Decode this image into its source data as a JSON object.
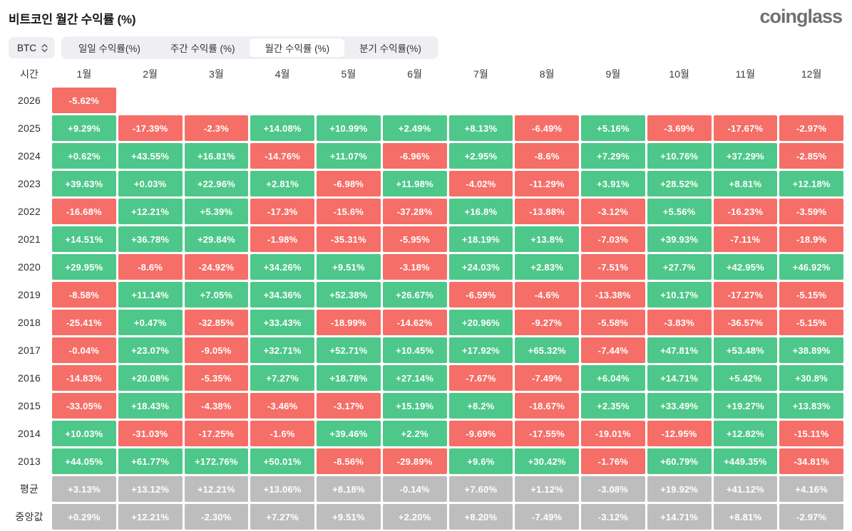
{
  "header": {
    "title": "비트코인 월간 수익률 (%)",
    "logo": "coinglass"
  },
  "controls": {
    "symbol_select": {
      "value": "BTC"
    },
    "tabs": [
      {
        "label": "일일 수익률(%)",
        "active": false
      },
      {
        "label": "주간 수익률 (%)",
        "active": false
      },
      {
        "label": "월간 수익률 (%)",
        "active": true
      },
      {
        "label": "분기 수익률(%)",
        "active": false
      }
    ]
  },
  "table": {
    "time_header": "시간",
    "months": [
      "1월",
      "2월",
      "3월",
      "4월",
      "5월",
      "6월",
      "7월",
      "8월",
      "9월",
      "10월",
      "11월",
      "12월"
    ],
    "rows": [
      {
        "label": "2026",
        "type": "year",
        "cells": [
          "-5.62%",
          "",
          "",
          "",
          "",
          "",
          "",
          "",
          "",
          "",
          "",
          ""
        ]
      },
      {
        "label": "2025",
        "type": "year",
        "cells": [
          "+9.29%",
          "-17.39%",
          "-2.3%",
          "+14.08%",
          "+10.99%",
          "+2.49%",
          "+8.13%",
          "-6.49%",
          "+5.16%",
          "-3.69%",
          "-17.67%",
          "-2.97%"
        ]
      },
      {
        "label": "2024",
        "type": "year",
        "cells": [
          "+0.62%",
          "+43.55%",
          "+16.81%",
          "-14.76%",
          "+11.07%",
          "-6.96%",
          "+2.95%",
          "-8.6%",
          "+7.29%",
          "+10.76%",
          "+37.29%",
          "-2.85%"
        ]
      },
      {
        "label": "2023",
        "type": "year",
        "cells": [
          "+39.63%",
          "+0.03%",
          "+22.96%",
          "+2.81%",
          "-6.98%",
          "+11.98%",
          "-4.02%",
          "-11.29%",
          "+3.91%",
          "+28.52%",
          "+8.81%",
          "+12.18%"
        ]
      },
      {
        "label": "2022",
        "type": "year",
        "cells": [
          "-16.68%",
          "+12.21%",
          "+5.39%",
          "-17.3%",
          "-15.6%",
          "-37.28%",
          "+16.8%",
          "-13.88%",
          "-3.12%",
          "+5.56%",
          "-16.23%",
          "-3.59%"
        ]
      },
      {
        "label": "2021",
        "type": "year",
        "cells": [
          "+14.51%",
          "+36.78%",
          "+29.84%",
          "-1.98%",
          "-35.31%",
          "-5.95%",
          "+18.19%",
          "+13.8%",
          "-7.03%",
          "+39.93%",
          "-7.11%",
          "-18.9%"
        ]
      },
      {
        "label": "2020",
        "type": "year",
        "cells": [
          "+29.95%",
          "-8.6%",
          "-24.92%",
          "+34.26%",
          "+9.51%",
          "-3.18%",
          "+24.03%",
          "+2.83%",
          "-7.51%",
          "+27.7%",
          "+42.95%",
          "+46.92%"
        ]
      },
      {
        "label": "2019",
        "type": "year",
        "cells": [
          "-8.58%",
          "+11.14%",
          "+7.05%",
          "+34.36%",
          "+52.38%",
          "+26.67%",
          "-6.59%",
          "-4.6%",
          "-13.38%",
          "+10.17%",
          "-17.27%",
          "-5.15%"
        ]
      },
      {
        "label": "2018",
        "type": "year",
        "cells": [
          "-25.41%",
          "+0.47%",
          "-32.85%",
          "+33.43%",
          "-18.99%",
          "-14.62%",
          "+20.96%",
          "-9.27%",
          "-5.58%",
          "-3.83%",
          "-36.57%",
          "-5.15%"
        ]
      },
      {
        "label": "2017",
        "type": "year",
        "cells": [
          "-0.04%",
          "+23.07%",
          "-9.05%",
          "+32.71%",
          "+52.71%",
          "+10.45%",
          "+17.92%",
          "+65.32%",
          "-7.44%",
          "+47.81%",
          "+53.48%",
          "+38.89%"
        ]
      },
      {
        "label": "2016",
        "type": "year",
        "cells": [
          "-14.83%",
          "+20.08%",
          "-5.35%",
          "+7.27%",
          "+18.78%",
          "+27.14%",
          "-7.67%",
          "-7.49%",
          "+6.04%",
          "+14.71%",
          "+5.42%",
          "+30.8%"
        ]
      },
      {
        "label": "2015",
        "type": "year",
        "cells": [
          "-33.05%",
          "+18.43%",
          "-4.38%",
          "-3.46%",
          "-3.17%",
          "+15.19%",
          "+8.2%",
          "-18.67%",
          "+2.35%",
          "+33.49%",
          "+19.27%",
          "+13.83%"
        ]
      },
      {
        "label": "2014",
        "type": "year",
        "cells": [
          "+10.03%",
          "-31.03%",
          "-17.25%",
          "-1.6%",
          "+39.46%",
          "+2.2%",
          "-9.69%",
          "-17.55%",
          "-19.01%",
          "-12.95%",
          "+12.82%",
          "-15.11%"
        ]
      },
      {
        "label": "2013",
        "type": "year",
        "cells": [
          "+44.05%",
          "+61.77%",
          "+172.76%",
          "+50.01%",
          "-8.56%",
          "-29.89%",
          "+9.6%",
          "+30.42%",
          "-1.76%",
          "+60.79%",
          "+449.35%",
          "-34.81%"
        ]
      },
      {
        "label": "평균",
        "type": "summary",
        "cells": [
          "+3.13%",
          "+13.12%",
          "+12.21%",
          "+13.06%",
          "+8.18%",
          "-0.14%",
          "+7.60%",
          "+1.12%",
          "-3.08%",
          "+19.92%",
          "+41.12%",
          "+4.16%"
        ]
      },
      {
        "label": "중앙값",
        "type": "summary",
        "cells": [
          "+0.29%",
          "+12.21%",
          "-2.30%",
          "+7.27%",
          "+9.51%",
          "+2.20%",
          "+8.20%",
          "-7.49%",
          "-3.12%",
          "+14.71%",
          "+8.81%",
          "-2.97%"
        ]
      }
    ]
  },
  "colors": {
    "positive": "#4EC78A",
    "negative": "#F56E67",
    "summary": "#BDBDBD"
  },
  "chart_data": {
    "type": "heatmap",
    "title": "비트코인 월간 수익률 (%)",
    "x_categories": [
      "1월",
      "2월",
      "3월",
      "4월",
      "5월",
      "6월",
      "7월",
      "8월",
      "9월",
      "10월",
      "11월",
      "12월"
    ],
    "y_categories": [
      "2026",
      "2025",
      "2024",
      "2023",
      "2022",
      "2021",
      "2020",
      "2019",
      "2018",
      "2017",
      "2016",
      "2015",
      "2014",
      "2013",
      "평균",
      "중앙값"
    ],
    "unit": "%",
    "legend_position": "none",
    "values_pct": [
      [
        -5.62,
        null,
        null,
        null,
        null,
        null,
        null,
        null,
        null,
        null,
        null,
        null
      ],
      [
        9.29,
        -17.39,
        -2.3,
        14.08,
        10.99,
        2.49,
        8.13,
        -6.49,
        5.16,
        -3.69,
        -17.67,
        -2.97
      ],
      [
        0.62,
        43.55,
        16.81,
        -14.76,
        11.07,
        -6.96,
        2.95,
        -8.6,
        7.29,
        10.76,
        37.29,
        -2.85
      ],
      [
        39.63,
        0.03,
        22.96,
        2.81,
        -6.98,
        11.98,
        -4.02,
        -11.29,
        3.91,
        28.52,
        8.81,
        12.18
      ],
      [
        -16.68,
        12.21,
        5.39,
        -17.3,
        -15.6,
        -37.28,
        16.8,
        -13.88,
        -3.12,
        5.56,
        -16.23,
        -3.59
      ],
      [
        14.51,
        36.78,
        29.84,
        -1.98,
        -35.31,
        -5.95,
        18.19,
        13.8,
        -7.03,
        39.93,
        -7.11,
        -18.9
      ],
      [
        29.95,
        -8.6,
        -24.92,
        34.26,
        9.51,
        -3.18,
        24.03,
        2.83,
        -7.51,
        27.7,
        42.95,
        46.92
      ],
      [
        -8.58,
        11.14,
        7.05,
        34.36,
        52.38,
        26.67,
        -6.59,
        -4.6,
        -13.38,
        10.17,
        -17.27,
        -5.15
      ],
      [
        -25.41,
        0.47,
        -32.85,
        33.43,
        -18.99,
        -14.62,
        20.96,
        -9.27,
        -5.58,
        -3.83,
        -36.57,
        -5.15
      ],
      [
        -0.04,
        23.07,
        -9.05,
        32.71,
        52.71,
        10.45,
        17.92,
        65.32,
        -7.44,
        47.81,
        53.48,
        38.89
      ],
      [
        -14.83,
        20.08,
        -5.35,
        7.27,
        18.78,
        27.14,
        -7.67,
        -7.49,
        6.04,
        14.71,
        5.42,
        30.8
      ],
      [
        -33.05,
        18.43,
        -4.38,
        -3.46,
        -3.17,
        15.19,
        8.2,
        -18.67,
        2.35,
        33.49,
        19.27,
        13.83
      ],
      [
        10.03,
        -31.03,
        -17.25,
        -1.6,
        39.46,
        2.2,
        -9.69,
        -17.55,
        -19.01,
        -12.95,
        12.82,
        -15.11
      ],
      [
        44.05,
        61.77,
        172.76,
        50.01,
        -8.56,
        -29.89,
        9.6,
        30.42,
        -1.76,
        60.79,
        449.35,
        -34.81
      ],
      [
        3.13,
        13.12,
        12.21,
        13.06,
        8.18,
        -0.14,
        7.6,
        1.12,
        -3.08,
        19.92,
        41.12,
        4.16
      ],
      [
        0.29,
        12.21,
        -2.3,
        7.27,
        9.51,
        2.2,
        8.2,
        -7.49,
        -3.12,
        14.71,
        8.81,
        -2.97
      ]
    ]
  }
}
